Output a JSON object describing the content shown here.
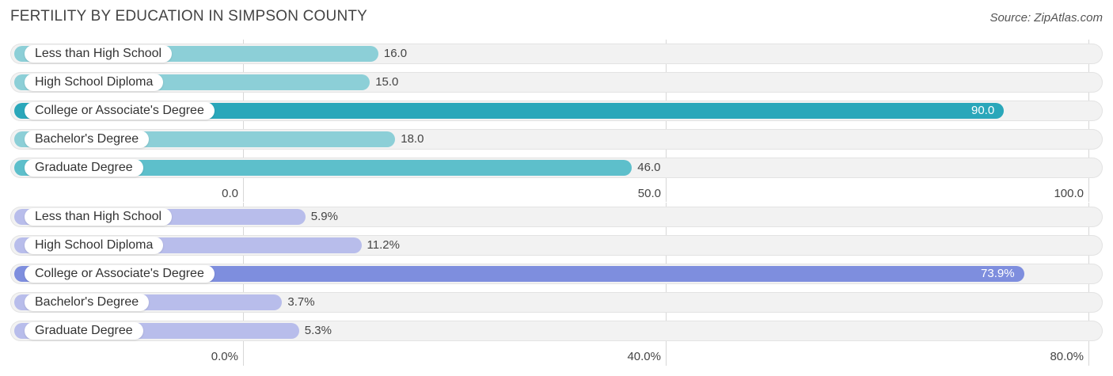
{
  "title": "FERTILITY BY EDUCATION IN SIMPSON COUNTY",
  "source": "Source: ZipAtlas.com",
  "chart_data": [
    {
      "type": "bar",
      "orientation": "horizontal",
      "categories": [
        "Less than High School",
        "High School Diploma",
        "College or Associate's Degree",
        "Bachelor's Degree",
        "Graduate Degree"
      ],
      "values": [
        16.0,
        15.0,
        90.0,
        18.0,
        46.0
      ],
      "value_labels": [
        "16.0",
        "15.0",
        "90.0",
        "18.0",
        "46.0"
      ],
      "xlim": [
        0,
        100
      ],
      "ticks": [
        0,
        50,
        100
      ],
      "tick_labels": [
        "0.0",
        "50.0",
        "100.0"
      ],
      "colors": [
        "#8ccfd7",
        "#8ccfd7",
        "#2aa7ba",
        "#8ccfd7",
        "#5dbfcb"
      ],
      "highlight_index": 2
    },
    {
      "type": "bar",
      "orientation": "horizontal",
      "categories": [
        "Less than High School",
        "High School Diploma",
        "College or Associate's Degree",
        "Bachelor's Degree",
        "Graduate Degree"
      ],
      "values": [
        5.9,
        11.2,
        73.9,
        3.7,
        5.3
      ],
      "value_labels": [
        "5.9%",
        "11.2%",
        "73.9%",
        "3.7%",
        "5.3%"
      ],
      "xlim": [
        0,
        80
      ],
      "ticks": [
        0,
        40,
        80
      ],
      "tick_labels": [
        "0.0%",
        "40.0%",
        "80.0%"
      ],
      "colors": [
        "#b8bdeb",
        "#b8bdeb",
        "#7e8ede",
        "#b8bdeb",
        "#b8bdeb"
      ],
      "highlight_index": 2
    }
  ]
}
